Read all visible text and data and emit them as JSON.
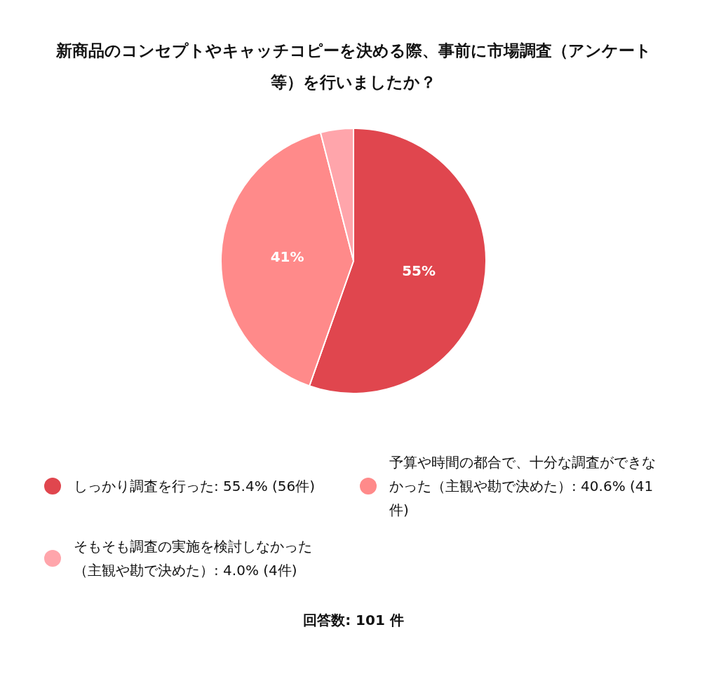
{
  "chart_data": {
    "type": "pie",
    "title": "新商品のコンセプトやキャッチコピーを決める際、事前に市場調査（アンケート等）を行いましたか？",
    "categories": [
      "しっかり調査を行った: 55.4% (56件)",
      "予算や時間の都合で、十分な調査ができなかった（主観や勘で決めた）: 40.6% (41件)",
      "そもそも調査の実施を検討しなかった（主観や勘で決めた）: 4.0% (4件)"
    ],
    "values": [
      55.4,
      40.6,
      4.0
    ],
    "colors": [
      "#e0464e",
      "#ff8a8a",
      "#ffa5ab"
    ],
    "value_labels": [
      "55%",
      "41%",
      null
    ],
    "legend": "bottom",
    "annotations": [
      "回答数: 101 件"
    ]
  }
}
